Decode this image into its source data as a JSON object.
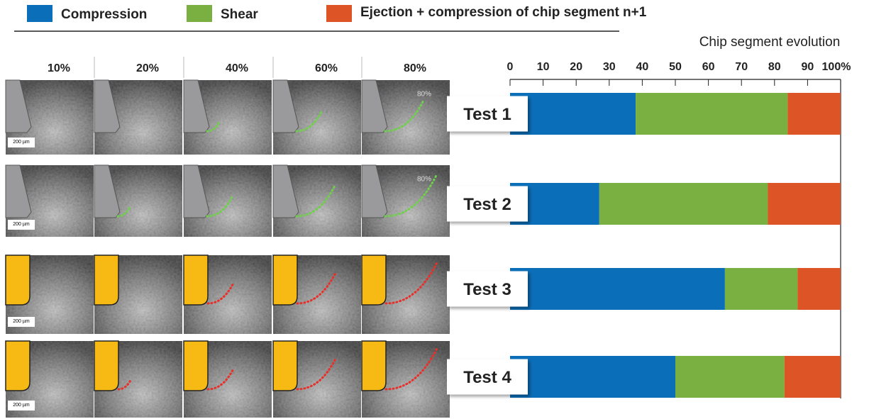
{
  "chart_data": {
    "type": "stacked-barh",
    "title": "Chip segment evolution",
    "categories": [
      "Test 1",
      "Test 2",
      "Test 3",
      "Test 4"
    ],
    "series": [
      {
        "name": "Compression",
        "color": "#0b6eb8",
        "values": [
          38,
          27,
          65,
          50
        ]
      },
      {
        "name": "Shear",
        "color": "#79b041",
        "values": [
          46,
          51,
          22,
          33
        ]
      },
      {
        "name": "Ejection + compression of chip segment n+1",
        "color": "#dd5426",
        "values": [
          16,
          22,
          13,
          17
        ]
      }
    ],
    "xlim": [
      0,
      100
    ],
    "xticks": [
      0,
      10,
      20,
      30,
      40,
      50,
      60,
      70,
      80,
      90,
      {
        "value": 100,
        "label": "100%"
      }
    ]
  },
  "image_panels": {
    "column_labels": [
      "10%",
      "20%",
      "40%",
      "60%",
      "80%"
    ],
    "scale_labels": [
      "200 µm",
      "200 µm",
      "200 µm",
      "200 µm"
    ],
    "overlay_labels": [
      "80%",
      "80%"
    ]
  }
}
